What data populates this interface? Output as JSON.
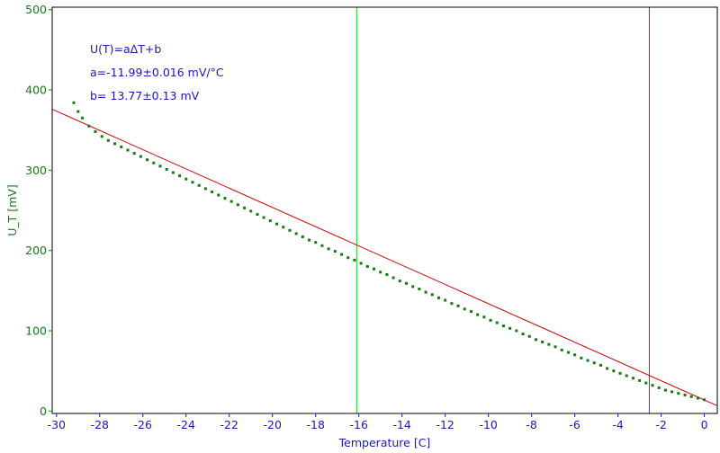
{
  "chart_data": {
    "type": "scatter",
    "xlabel": "Temperature [C]",
    "ylabel": "U_T [mV]",
    "xlim": [
      -30.2,
      0.6
    ],
    "ylim": [
      -3,
      503
    ],
    "x_ticks": [
      -30,
      -28,
      -26,
      -24,
      -22,
      -20,
      -18,
      -16,
      -14,
      -12,
      -10,
      -8,
      -6,
      -4,
      -2,
      0
    ],
    "y_ticks": [
      0,
      100,
      200,
      300,
      400,
      500
    ],
    "x_tick_labels": [
      "-30",
      "-28",
      "-26",
      "-24",
      "-22",
      "-20",
      "-18",
      "-16",
      "-14",
      "-12",
      "-10",
      "-8",
      "-6",
      "-4",
      "-2",
      "0"
    ],
    "y_tick_labels": [
      "0",
      "100",
      "200",
      "300",
      "400",
      "500"
    ],
    "grid": false,
    "annotations": [
      "U(T)=aΔT+b",
      "a=-11.99±0.016 mV/°C",
      "b= 13.77±0.13 mV"
    ],
    "fit": {
      "slope": -11.99,
      "intercept": 13.77,
      "x_range": [
        -30.2,
        0.6
      ]
    },
    "series": [
      {
        "x": [
          -29.2,
          -29.0,
          -28.8,
          -28.5,
          -28.2,
          -27.9,
          -27.6,
          -27.3,
          -27.0,
          -26.7,
          -26.4,
          -26.1,
          -25.8,
          -25.5,
          -25.2,
          -24.9,
          -24.6,
          -24.3,
          -24.0,
          -23.7,
          -23.4,
          -23.1,
          -22.8,
          -22.5,
          -22.2,
          -21.9,
          -21.6,
          -21.3,
          -21.0,
          -20.7,
          -20.4,
          -20.1,
          -19.8,
          -19.5,
          -19.2,
          -18.9,
          -18.6,
          -18.3,
          -18.0,
          -17.7,
          -17.4,
          -17.1,
          -16.8,
          -16.5,
          -16.2,
          -15.9,
          -15.6,
          -15.3,
          -15.0,
          -14.7,
          -14.4,
          -14.1,
          -13.8,
          -13.5,
          -13.2,
          -12.9,
          -12.6,
          -12.3,
          -12.0,
          -11.7,
          -11.4,
          -11.1,
          -10.8,
          -10.5,
          -10.2,
          -9.9,
          -9.6,
          -9.3,
          -9.0,
          -8.7,
          -8.4,
          -8.1,
          -7.8,
          -7.5,
          -7.2,
          -6.9,
          -6.6,
          -6.3,
          -6.0,
          -5.7,
          -5.4,
          -5.1,
          -4.8,
          -4.5,
          -4.2,
          -3.9,
          -3.6,
          -3.3,
          -3.0,
          -2.7,
          -2.4,
          -2.1,
          -1.8,
          -1.5,
          -1.2,
          -0.9,
          -0.6,
          -0.3,
          0.0
        ],
        "y": [
          384,
          373,
          365,
          355,
          348,
          342,
          337,
          333,
          329,
          325,
          321,
          317,
          313,
          309,
          305,
          301,
          297,
          293,
          289,
          285,
          281,
          277,
          273,
          269,
          265,
          261,
          257,
          253,
          249,
          245,
          241,
          237,
          233,
          229,
          225,
          221,
          217,
          213,
          210,
          206,
          202,
          199,
          195,
          191,
          188,
          184,
          180,
          177,
          173,
          170,
          166,
          162,
          159,
          155,
          152,
          148,
          145,
          141,
          138,
          134,
          131,
          127,
          124,
          120,
          117,
          113,
          110,
          106,
          103,
          100,
          96,
          93,
          89,
          86,
          83,
          80,
          76,
          73,
          70,
          66,
          63,
          60,
          57,
          53,
          50,
          47,
          44,
          41,
          38,
          35,
          32,
          29,
          26,
          24,
          22,
          20,
          18,
          16,
          14
        ],
        "color": "#127a12"
      }
    ],
    "cursor_lines": [
      {
        "x": -16.1,
        "color": "#22cc22"
      },
      {
        "x": -2.55,
        "color": "#dd1111"
      }
    ],
    "colors": {
      "frame": "#000000",
      "x_axis_text": "#1a1ab3",
      "y_axis_text": "#127a12",
      "annotation_text": "#1a1ab3",
      "fit_line": "#cc0000",
      "points": "#127a12"
    }
  }
}
